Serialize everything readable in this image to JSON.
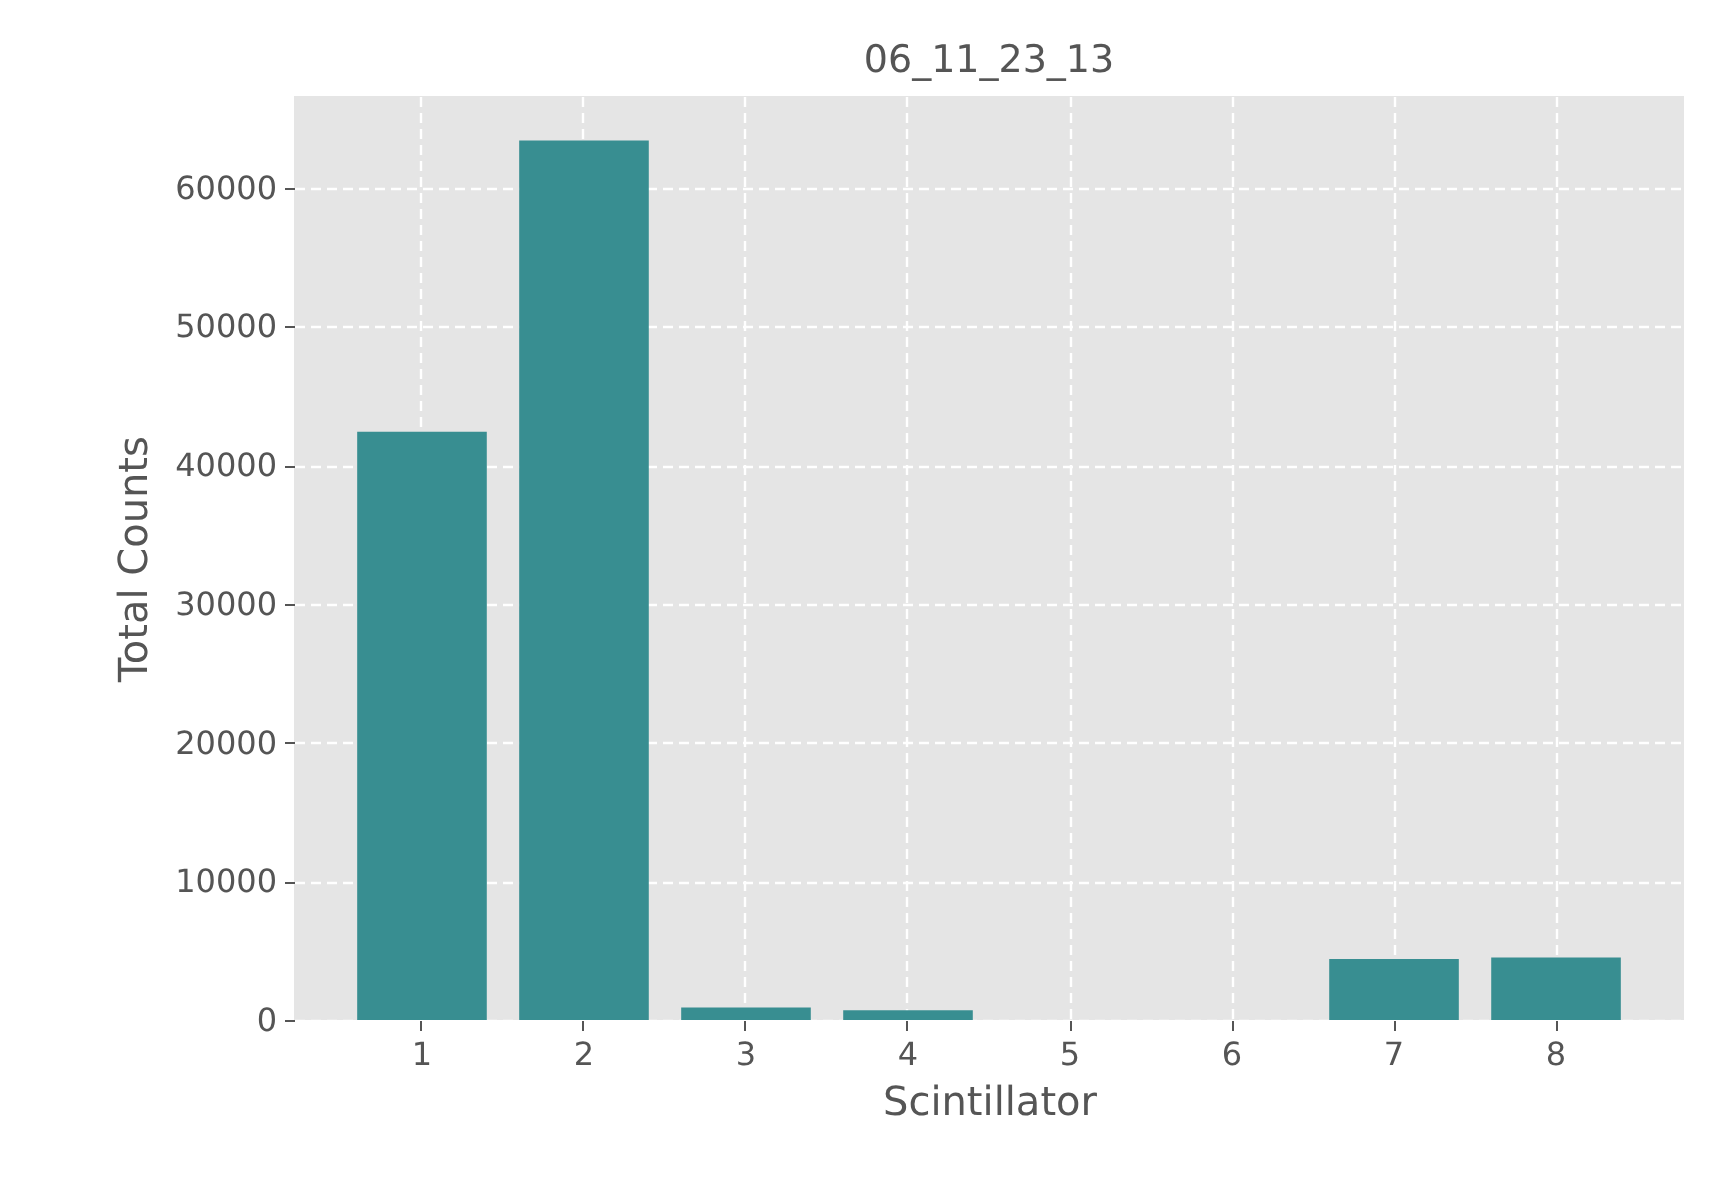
{
  "chart_data": {
    "type": "bar",
    "title": "06_11_23_13",
    "xlabel": "Scintillator",
    "ylabel": "Total Counts",
    "categories": [
      "1",
      "2",
      "3",
      "4",
      "5",
      "6",
      "7",
      "8"
    ],
    "values": [
      42400,
      63400,
      900,
      700,
      0,
      0,
      4400,
      4500
    ],
    "color": "#388e91",
    "ylim": [
      0,
      66600
    ],
    "yticks": [
      0,
      10000,
      20000,
      30000,
      40000,
      50000,
      60000
    ],
    "grid": true
  }
}
